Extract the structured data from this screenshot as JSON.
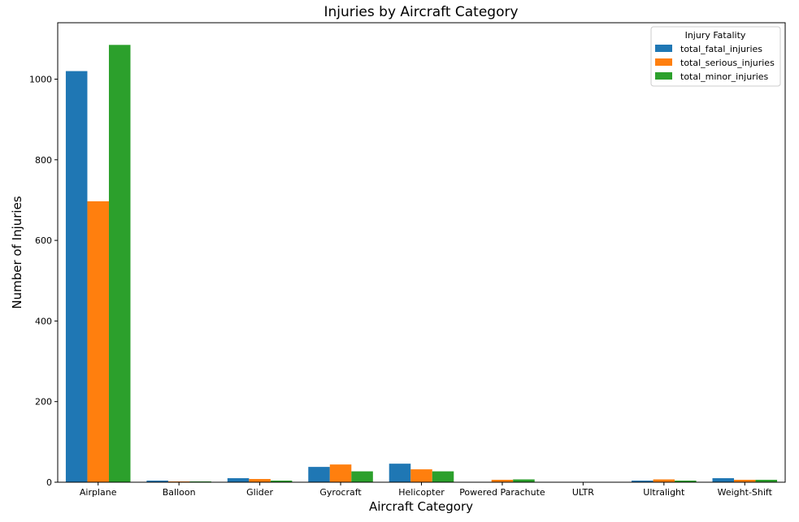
{
  "chart_data": {
    "type": "bar",
    "title": "Injuries by Aircraft Category",
    "xlabel": "Aircraft Category",
    "ylabel": "Number of Injuries",
    "categories": [
      "Airplane",
      "Balloon",
      "Glider",
      "Gyrocraft",
      "Helicopter",
      "Powered Parachute",
      "ULTR",
      "Ultralight",
      "Weight-Shift"
    ],
    "series": [
      {
        "name": "total_fatal_injuries",
        "color": "#1f77b4",
        "values": [
          1020,
          4,
          10,
          38,
          46,
          1,
          0,
          4,
          10
        ]
      },
      {
        "name": "total_serious_injuries",
        "color": "#ff7f0e",
        "values": [
          697,
          2,
          8,
          44,
          32,
          6,
          0,
          7,
          6
        ]
      },
      {
        "name": "total_minor_injuries",
        "color": "#2ca02c",
        "values": [
          1085,
          2,
          4,
          27,
          27,
          7,
          1,
          4,
          6
        ]
      }
    ],
    "ylim": [
      0,
      1140
    ],
    "yticks": [
      0,
      200,
      400,
      600,
      800,
      1000
    ],
    "grid": false,
    "legend": {
      "title": "Injury Fatality",
      "placement": "top-right"
    }
  }
}
